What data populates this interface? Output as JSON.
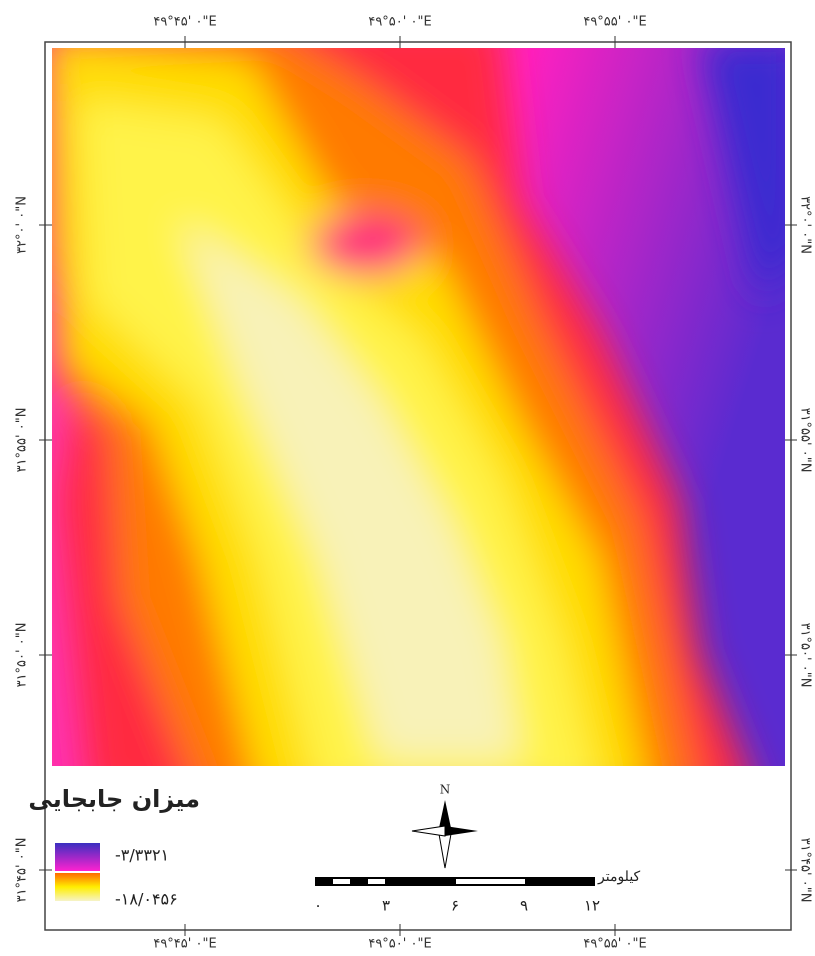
{
  "top_labels": [
    "۴۹°۴۵' ۰\"E",
    "۴۹°۵۰' ۰\"E",
    "۴۹°۵۵' ۰\"E"
  ],
  "bottom_labels": [
    "۴۹°۴۵' ۰\"E",
    "۴۹°۵۰' ۰\"E",
    "۴۹°۵۵' ۰\"E"
  ],
  "left_labels": [
    "۳۲°۰' ۰\"N",
    "۳۱°۵۵' ۰\"N",
    "۳۱°۵۰' ۰\"N",
    "۳۱°۴۵' ۰\"N"
  ],
  "right_labels": [
    "۳۲°۰' ۰\"N",
    "۳۱°۵۵' ۰\"N",
    "۳۱°۵۰' ۰\"N",
    "۳۱°۴۵' ۰\"N"
  ],
  "legend": {
    "title": "میزان جابجایی",
    "max": "-۳/۳۳۲۱",
    "min": "-۱۸/۰۴۵۶"
  },
  "scale": {
    "unit": "کیلومتر",
    "ticks": [
      "۰",
      "۳",
      "۶",
      "۹",
      "۱۲"
    ]
  },
  "north": "N"
}
